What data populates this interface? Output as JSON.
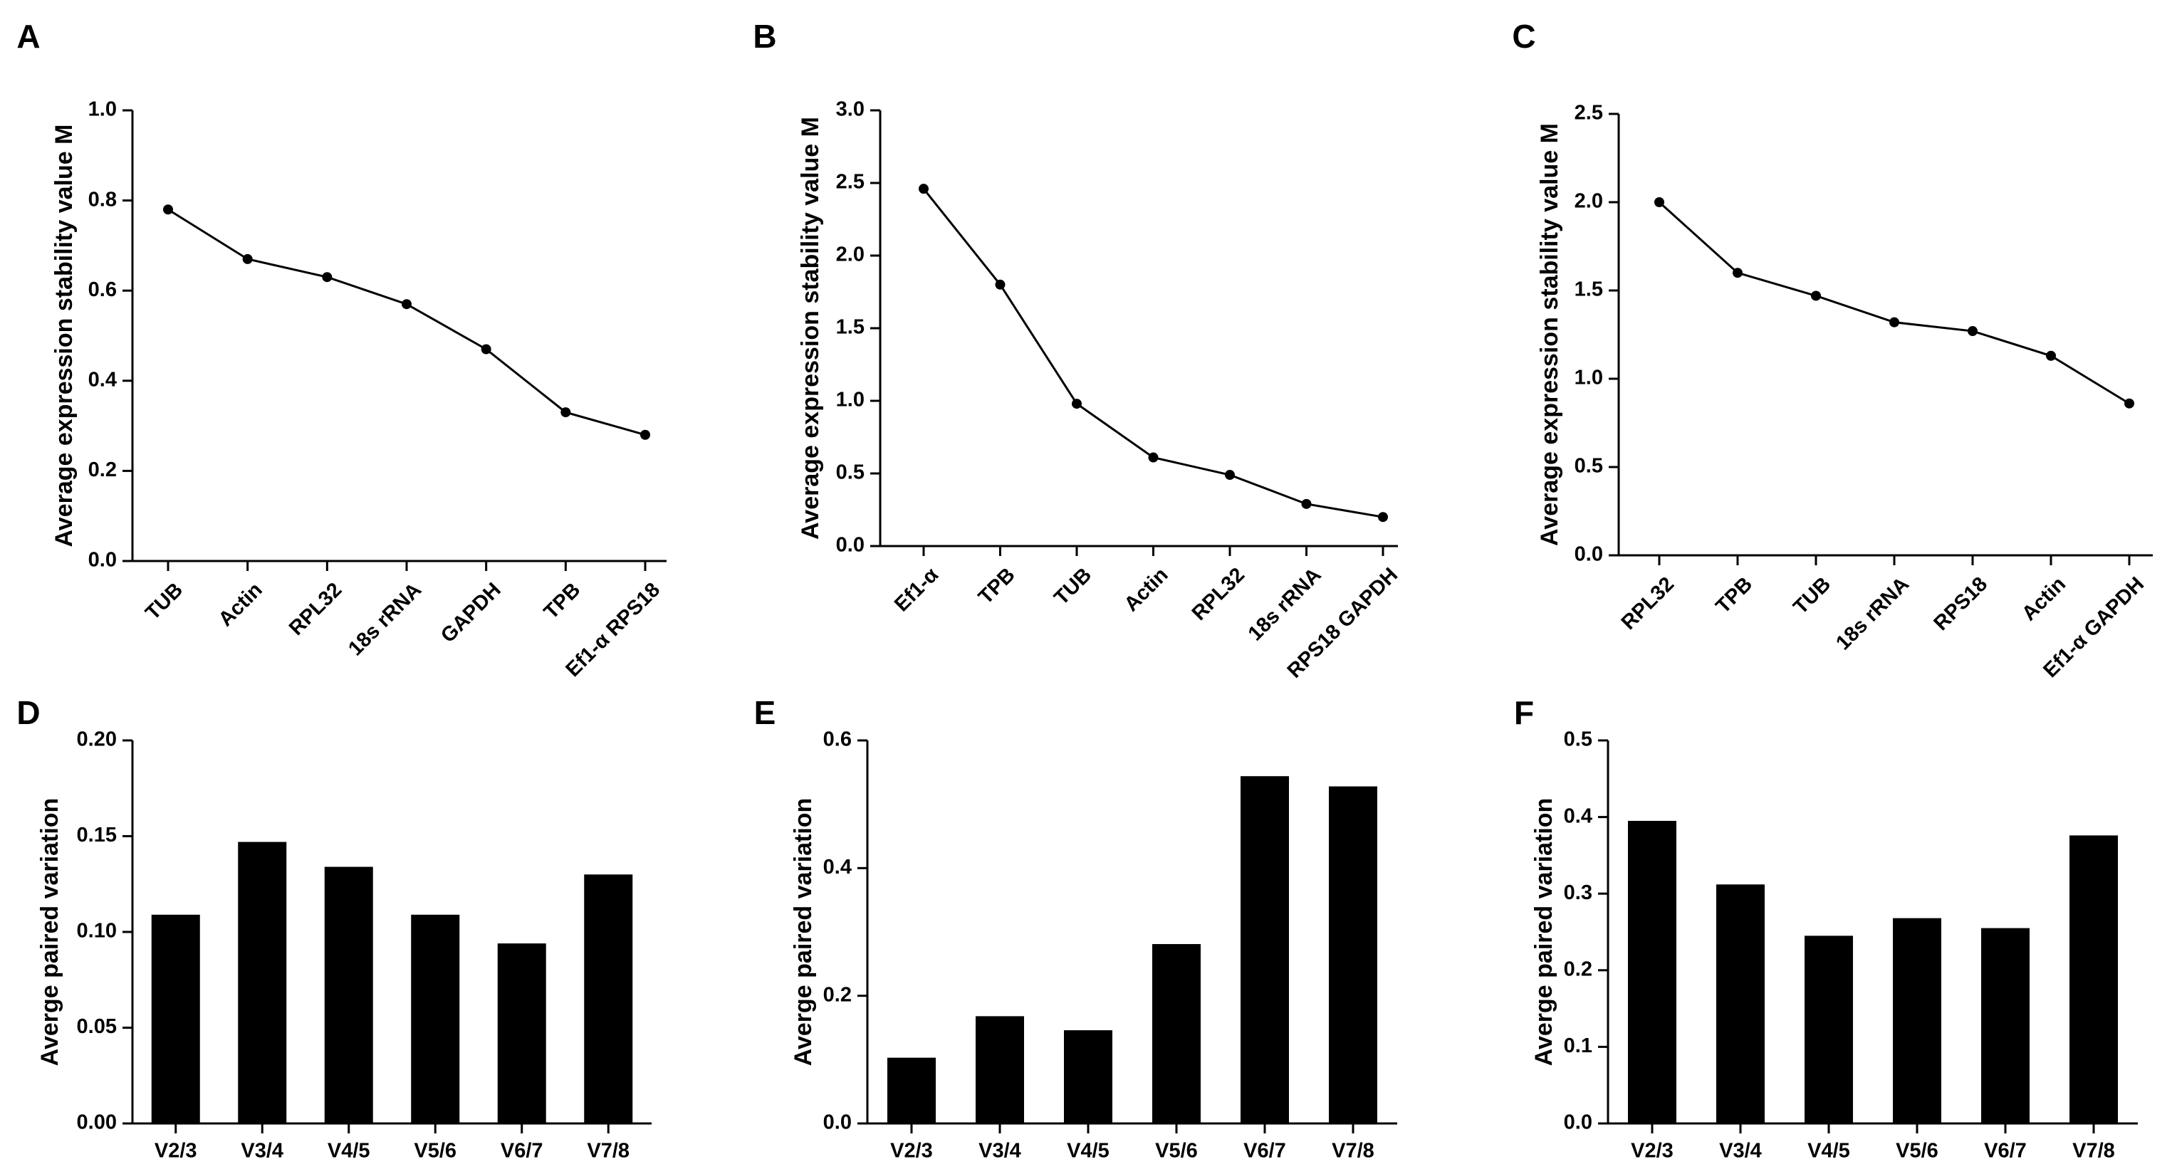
{
  "chart_data": [
    {
      "panel": "A",
      "type": "line",
      "categories": [
        "TUB",
        "Actin",
        "RPL32",
        "18s rRNA",
        "GAPDH",
        "TPB",
        "Ef1-α RPS18"
      ],
      "values": [
        0.78,
        0.67,
        0.63,
        0.57,
        0.47,
        0.33,
        0.28
      ],
      "ylabel": "Average expression stability value M",
      "xlabel": "",
      "ylim": [
        0,
        1.0
      ],
      "yticks": [
        0.0,
        0.2,
        0.4,
        0.6,
        0.8,
        1.0
      ],
      "ytick_labels": [
        "0.0",
        "0.2",
        "0.4",
        "0.6",
        "0.8",
        "1.0"
      ]
    },
    {
      "panel": "B",
      "type": "line",
      "categories": [
        "Ef1-α",
        "TPB",
        "TUB",
        "Actin",
        "RPL32",
        "18s rRNA",
        "RPS18 GAPDH"
      ],
      "values": [
        2.46,
        1.8,
        0.98,
        0.61,
        0.49,
        0.29,
        0.2
      ],
      "ylabel": "Average expression stability value M",
      "xlabel": "",
      "ylim": [
        0,
        3.0
      ],
      "yticks": [
        0.0,
        0.5,
        1.0,
        1.5,
        2.0,
        2.5,
        3.0
      ],
      "ytick_labels": [
        "0.0",
        "0.5",
        "1.0",
        "1.5",
        "2.0",
        "2.5",
        "3.0"
      ]
    },
    {
      "panel": "C",
      "type": "line",
      "categories": [
        "RPL32",
        "TPB",
        "TUB",
        "18s rRNA",
        "RPS18",
        "Actin",
        "Ef1-α GAPDH"
      ],
      "values": [
        2.0,
        1.6,
        1.47,
        1.32,
        1.27,
        1.13,
        0.86
      ],
      "ylabel": "Average expression stability value M",
      "xlabel": "",
      "ylim": [
        0,
        2.5
      ],
      "yticks": [
        0.0,
        0.5,
        1.0,
        1.5,
        2.0,
        2.5
      ],
      "ytick_labels": [
        "0.0",
        "0.5",
        "1.0",
        "1.5",
        "2.0",
        "2.5"
      ]
    },
    {
      "panel": "D",
      "type": "bar",
      "categories": [
        "V2/3",
        "V3/4",
        "V4/5",
        "V5/6",
        "V6/7",
        "V7/8"
      ],
      "values": [
        0.109,
        0.147,
        0.134,
        0.109,
        0.094,
        0.13
      ],
      "ylabel": "Averge paired variation",
      "xlabel": "",
      "ylim": [
        0,
        0.2
      ],
      "yticks": [
        0.0,
        0.05,
        0.1,
        0.15,
        0.2
      ],
      "ytick_labels": [
        "0.00",
        "0.05",
        "0.10",
        "0.15",
        "0.20"
      ]
    },
    {
      "panel": "E",
      "type": "bar",
      "categories": [
        "V2/3",
        "V3/4",
        "V4/5",
        "V5/6",
        "V6/7",
        "V7/8"
      ],
      "values": [
        0.103,
        0.168,
        0.146,
        0.281,
        0.544,
        0.528
      ],
      "ylabel": "Averge paired variation",
      "xlabel": "",
      "ylim": [
        0,
        0.6
      ],
      "yticks": [
        0.0,
        0.2,
        0.4,
        0.6
      ],
      "ytick_labels": [
        "0.0",
        "0.2",
        "0.4",
        "0.6"
      ]
    },
    {
      "panel": "F",
      "type": "bar",
      "categories": [
        "V2/3",
        "V3/4",
        "V4/5",
        "V5/6",
        "V6/7",
        "V7/8"
      ],
      "values": [
        0.395,
        0.312,
        0.245,
        0.268,
        0.255,
        0.376
      ],
      "ylabel": "Averge paired variation",
      "xlabel": "",
      "ylim": [
        0,
        0.5
      ],
      "yticks": [
        0.0,
        0.1,
        0.2,
        0.3,
        0.4,
        0.5
      ],
      "ytick_labels": [
        "0.0",
        "0.1",
        "0.2",
        "0.3",
        "0.4",
        "0.5"
      ]
    }
  ]
}
